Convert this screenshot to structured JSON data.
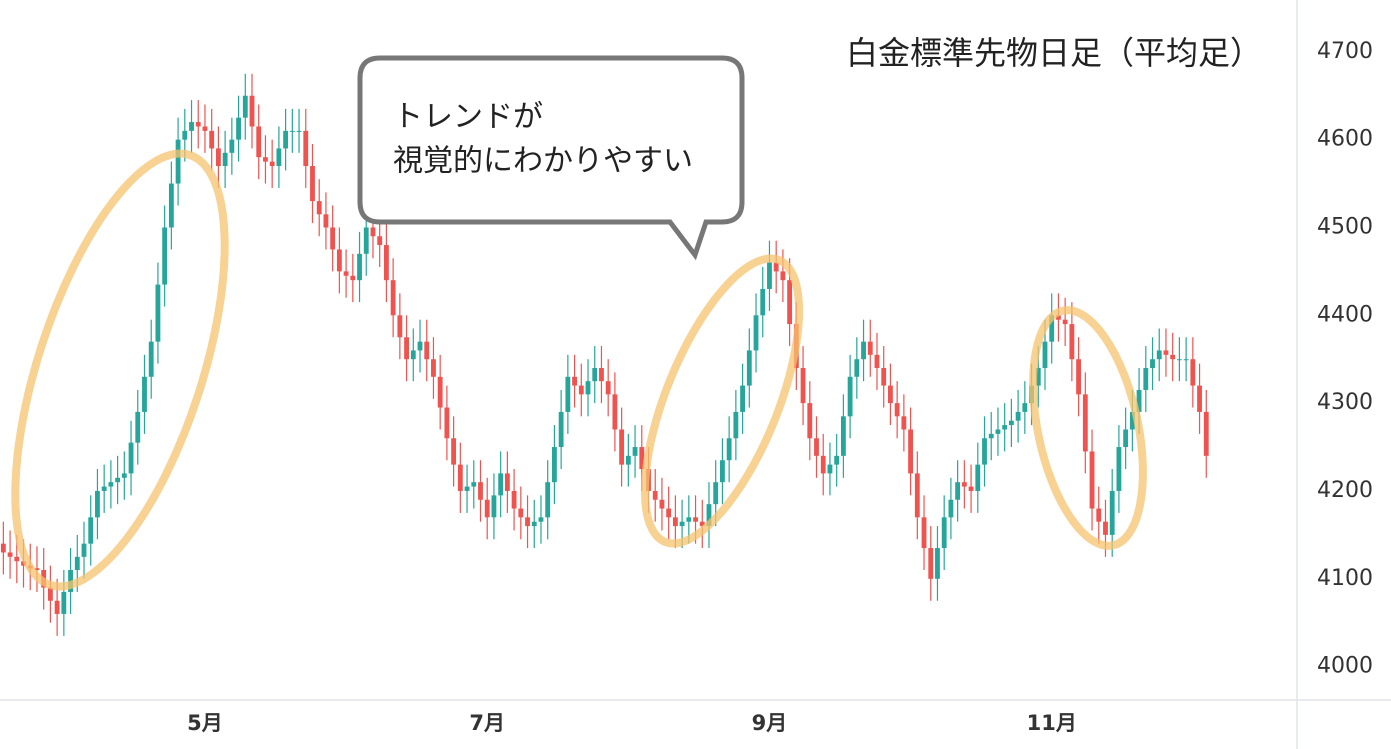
{
  "chart_data": {
    "type": "candlestick",
    "title": "白金標準先物日足（平均足）",
    "annotations": [
      "トレンドが",
      "視覚的にわかりやすい"
    ],
    "up_color": "#26a69a",
    "down_color": "#ef5350",
    "grid": false,
    "xlim": [
      -0.5,
      192.5
    ],
    "xticks": [
      {
        "value": 30,
        "label": "5月"
      },
      {
        "value": 72,
        "label": "7月"
      },
      {
        "value": 114,
        "label": "9月"
      },
      {
        "value": 156,
        "label": "11月"
      }
    ],
    "ylim": [
      3962,
      4759
    ],
    "yticks": [
      4000,
      4100,
      4200,
      4300,
      4400,
      4500,
      4600,
      4700
    ],
    "open": [
      4140,
      4130,
      4125,
      4120,
      4115,
      4112,
      4110,
      4090,
      4075,
      4060,
      4085,
      4110,
      4125,
      4140,
      4170,
      4200,
      4205,
      4210,
      4215,
      4220,
      4255,
      4290,
      4330,
      4370,
      4435,
      4500,
      4550,
      4600,
      4610,
      4620,
      4615,
      4610,
      4590,
      4570,
      4585,
      4600,
      4625,
      4650,
      4615,
      4580,
      4575,
      4570,
      4590,
      4610,
      4610,
      4610,
      4570,
      4530,
      4515,
      4500,
      4475,
      4450,
      4445,
      4440,
      4470,
      4500,
      4490,
      4480,
      4440,
      4400,
      4375,
      4350,
      4360,
      4370,
      4350,
      4330,
      4295,
      4260,
      4230,
      4200,
      4205,
      4210,
      4190,
      4170,
      4195,
      4220,
      4200,
      4180,
      4170,
      4160,
      4165,
      4170,
      4210,
      4250,
      4290,
      4330,
      4320,
      4310,
      4325,
      4340,
      4325,
      4310,
      4270,
      4230,
      4240,
      4250,
      4225,
      4200,
      4190,
      4180,
      4170,
      4160,
      4165,
      4170,
      4165,
      4160,
      4185,
      4210,
      4235,
      4260,
      4290,
      4320,
      4360,
      4400,
      4430,
      4460,
      4450,
      4440,
      4390,
      4340,
      4300,
      4260,
      4240,
      4220,
      4230,
      4240,
      4285,
      4330,
      4350,
      4370,
      4355,
      4340,
      4320,
      4300,
      4285,
      4270,
      4220,
      4170,
      4135,
      4100,
      4135,
      4170,
      4190,
      4210,
      4205,
      4200,
      4230,
      4260,
      4265,
      4270,
      4275,
      4280,
      4290,
      4300,
      4320,
      4340,
      4370,
      4400,
      4395,
      4390,
      4350,
      4310,
      4245,
      4180,
      4165,
      4150,
      4200,
      4250,
      4270,
      4290,
      4315,
      4340,
      4350,
      4360,
      4355,
      4350,
      4350,
      4350,
      4320,
      4290
    ],
    "high": [
      4165,
      4155,
      4150,
      4145,
      4140,
      4137,
      4135,
      4115,
      4100,
      4110,
      4135,
      4150,
      4165,
      4195,
      4225,
      4230,
      4235,
      4240,
      4245,
      4280,
      4315,
      4355,
      4395,
      4460,
      4525,
      4575,
      4625,
      4635,
      4645,
      4645,
      4640,
      4635,
      4615,
      4610,
      4625,
      4650,
      4675,
      4675,
      4640,
      4605,
      4600,
      4615,
      4635,
      4635,
      4635,
      4635,
      4595,
      4555,
      4540,
      4525,
      4500,
      4475,
      4470,
      4495,
      4525,
      4525,
      4515,
      4505,
      4465,
      4425,
      4400,
      4385,
      4395,
      4395,
      4375,
      4355,
      4320,
      4285,
      4255,
      4230,
      4235,
      4235,
      4215,
      4220,
      4245,
      4245,
      4225,
      4205,
      4195,
      4190,
      4195,
      4235,
      4275,
      4315,
      4355,
      4355,
      4345,
      4350,
      4365,
      4365,
      4350,
      4335,
      4295,
      4265,
      4275,
      4275,
      4250,
      4225,
      4215,
      4205,
      4195,
      4190,
      4195,
      4195,
      4190,
      4210,
      4235,
      4260,
      4285,
      4315,
      4345,
      4385,
      4425,
      4455,
      4485,
      4485,
      4475,
      4465,
      4415,
      4365,
      4325,
      4285,
      4265,
      4255,
      4265,
      4310,
      4355,
      4375,
      4395,
      4395,
      4380,
      4365,
      4345,
      4325,
      4310,
      4295,
      4245,
      4195,
      4160,
      4160,
      4195,
      4215,
      4235,
      4235,
      4230,
      4255,
      4285,
      4290,
      4295,
      4300,
      4305,
      4315,
      4325,
      4345,
      4365,
      4395,
      4425,
      4425,
      4420,
      4415,
      4375,
      4335,
      4270,
      4205,
      4190,
      4225,
      4275,
      4295,
      4315,
      4340,
      4365,
      4375,
      4385,
      4385,
      4380,
      4375,
      4375,
      4375,
      4345,
      4315
    ],
    "low": [
      4105,
      4100,
      4095,
      4090,
      4087,
      4085,
      4065,
      4050,
      4035,
      4035,
      4060,
      4085,
      4100,
      4115,
      4145,
      4175,
      4180,
      4185,
      4190,
      4195,
      4230,
      4265,
      4305,
      4345,
      4410,
      4475,
      4525,
      4575,
      4585,
      4590,
      4585,
      4565,
      4545,
      4545,
      4560,
      4575,
      4600,
      4590,
      4555,
      4550,
      4545,
      4545,
      4565,
      4585,
      4585,
      4545,
      4505,
      4490,
      4475,
      4450,
      4425,
      4420,
      4415,
      4415,
      4445,
      4465,
      4455,
      4415,
      4375,
      4350,
      4325,
      4325,
      4335,
      4325,
      4305,
      4270,
      4235,
      4205,
      4175,
      4175,
      4180,
      4165,
      4145,
      4145,
      4170,
      4175,
      4155,
      4145,
      4135,
      4135,
      4140,
      4145,
      4185,
      4225,
      4265,
      4295,
      4285,
      4285,
      4300,
      4300,
      4285,
      4245,
      4205,
      4205,
      4215,
      4200,
      4175,
      4165,
      4155,
      4145,
      4135,
      4135,
      4140,
      4140,
      4135,
      4135,
      4160,
      4185,
      4210,
      4235,
      4265,
      4295,
      4335,
      4375,
      4405,
      4425,
      4415,
      4365,
      4315,
      4275,
      4235,
      4215,
      4195,
      4195,
      4205,
      4215,
      4260,
      4305,
      4325,
      4330,
      4315,
      4295,
      4275,
      4260,
      4245,
      4195,
      4145,
      4110,
      4075,
      4075,
      4110,
      4145,
      4165,
      4180,
      4175,
      4175,
      4205,
      4235,
      4240,
      4245,
      4250,
      4255,
      4265,
      4275,
      4295,
      4315,
      4345,
      4370,
      4365,
      4325,
      4285,
      4220,
      4155,
      4140,
      4125,
      4125,
      4175,
      4225,
      4245,
      4265,
      4290,
      4315,
      4325,
      4330,
      4325,
      4325,
      4325,
      4295,
      4265,
      4215
    ],
    "close": [
      4130,
      4125,
      4120,
      4115,
      4112,
      4110,
      4090,
      4075,
      4060,
      4085,
      4110,
      4125,
      4140,
      4170,
      4200,
      4205,
      4210,
      4215,
      4220,
      4255,
      4290,
      4330,
      4370,
      4435,
      4500,
      4550,
      4600,
      4610,
      4620,
      4615,
      4610,
      4590,
      4570,
      4585,
      4600,
      4625,
      4650,
      4615,
      4580,
      4575,
      4570,
      4590,
      4610,
      4610,
      4610,
      4570,
      4530,
      4515,
      4500,
      4475,
      4450,
      4445,
      4440,
      4470,
      4500,
      4490,
      4480,
      4440,
      4400,
      4375,
      4350,
      4360,
      4370,
      4350,
      4330,
      4295,
      4260,
      4230,
      4200,
      4205,
      4210,
      4190,
      4170,
      4195,
      4220,
      4200,
      4180,
      4170,
      4160,
      4165,
      4170,
      4210,
      4250,
      4290,
      4330,
      4320,
      4310,
      4325,
      4340,
      4325,
      4310,
      4270,
      4230,
      4240,
      4250,
      4225,
      4200,
      4190,
      4180,
      4170,
      4160,
      4165,
      4170,
      4165,
      4160,
      4185,
      4210,
      4235,
      4260,
      4290,
      4320,
      4360,
      4400,
      4430,
      4460,
      4450,
      4440,
      4390,
      4340,
      4300,
      4260,
      4240,
      4220,
      4230,
      4240,
      4285,
      4330,
      4350,
      4370,
      4355,
      4340,
      4320,
      4300,
      4285,
      4270,
      4220,
      4170,
      4135,
      4100,
      4135,
      4170,
      4190,
      4210,
      4205,
      4200,
      4230,
      4260,
      4265,
      4270,
      4275,
      4280,
      4290,
      4300,
      4320,
      4340,
      4370,
      4400,
      4395,
      4390,
      4350,
      4310,
      4245,
      4180,
      4165,
      4150,
      4200,
      4250,
      4270,
      4290,
      4315,
      4340,
      4350,
      4360,
      4355,
      4350,
      4350,
      4350,
      4320,
      4290,
      4240
    ]
  }
}
